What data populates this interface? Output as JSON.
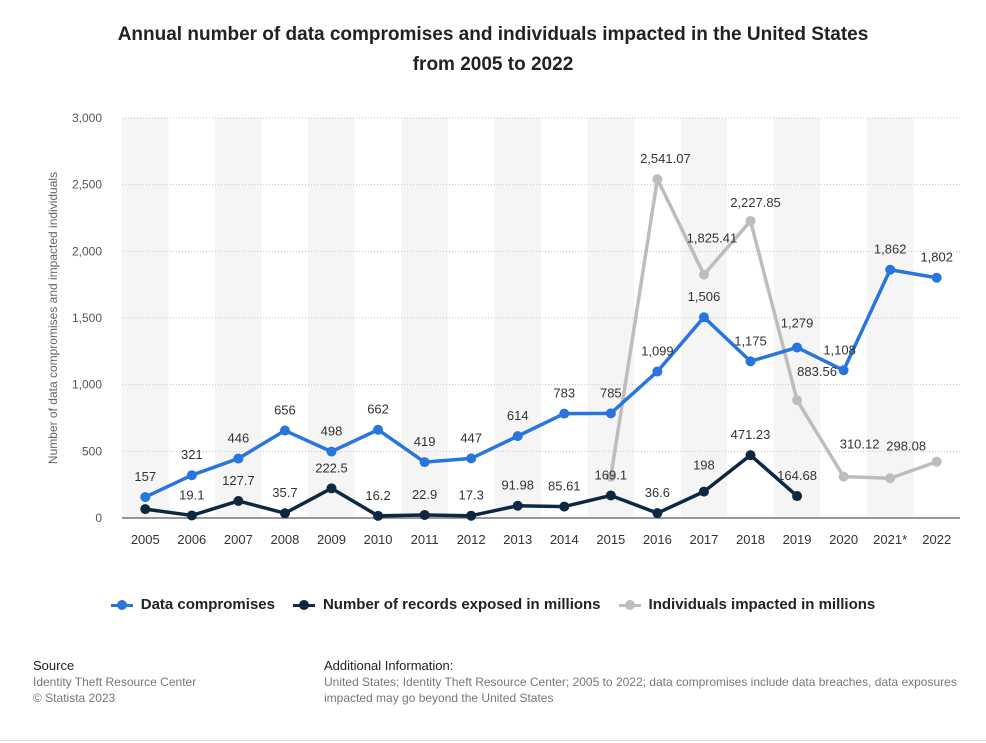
{
  "title_line1": "Annual number of data compromises and individuals impacted in the United States",
  "title_line2": "from 2005 to 2022",
  "chart_data": {
    "type": "line",
    "title": "Annual number of data compromises and individuals impacted in the United States from 2005 to 2022",
    "xlabel": "",
    "ylabel": "Number of data compromises and impacted individuals",
    "ylim": [
      0,
      3000
    ],
    "yticks": [
      0,
      500,
      1000,
      1500,
      2000,
      2500,
      3000
    ],
    "ytick_labels": [
      "0",
      "500",
      "1,000",
      "1,500",
      "2,000",
      "2,500",
      "3,000"
    ],
    "categories": [
      "2005",
      "2006",
      "2007",
      "2008",
      "2009",
      "2010",
      "2011",
      "2012",
      "2013",
      "2014",
      "2015",
      "2016",
      "2017",
      "2018",
      "2019",
      "2020",
      "2021*",
      "2022"
    ],
    "grid": true,
    "legend_position": "bottom",
    "series": [
      {
        "name": "Data compromises",
        "color": "#2876dd",
        "values": [
          157,
          321,
          446,
          656,
          498,
          662,
          419,
          447,
          614,
          783,
          785,
          1099,
          1506,
          1175,
          1279,
          1108,
          1862,
          1802
        ],
        "labels": [
          "157",
          "321",
          "446",
          "656",
          "498",
          "662",
          "419",
          "447",
          "614",
          "783",
          "785",
          "1,099",
          "1,506",
          "1,175",
          "1,279",
          "1,108",
          "1,862",
          "1,802"
        ]
      },
      {
        "name": "Number of records exposed in millions",
        "color": "#0e2841",
        "values": [
          66.9,
          19.1,
          127.7,
          35.7,
          222.5,
          16.2,
          22.9,
          17.3,
          91.98,
          85.61,
          169.1,
          36.6,
          198,
          471.23,
          164.68,
          null,
          null,
          null
        ],
        "labels": [
          "",
          "19.1",
          "127.7",
          "35.7",
          "222.5",
          "16.2",
          "22.9",
          "17.3",
          "91.98",
          "85.61",
          "169.1",
          "36.6",
          "198",
          "471.23",
          "164.68",
          "",
          "",
          ""
        ]
      },
      {
        "name": "Individuals impacted in millions",
        "color": "#bdbdbd",
        "values": [
          null,
          null,
          null,
          null,
          null,
          null,
          null,
          null,
          null,
          null,
          310,
          2541.07,
          1825.41,
          2227.85,
          883.56,
          310.12,
          298.08,
          422.14
        ],
        "labels": [
          "",
          "",
          "",
          "",
          "",
          "",
          "",
          "",
          "",
          "",
          "",
          "2,541.07",
          "1,825.41",
          "2,227.85",
          "883.56",
          "310.12",
          "298.08",
          ""
        ]
      }
    ]
  },
  "footer": {
    "source_heading": "Source",
    "source_line1": "Identity Theft Resource Center",
    "source_line2": "© Statista 2023",
    "additional_heading": "Additional Information:",
    "additional_line1": "United States; Identity Theft Resource Center; 2005 to 2022; data compromises include data breaches, data exposures",
    "additional_line2": "impacted may go beyond the United States"
  }
}
